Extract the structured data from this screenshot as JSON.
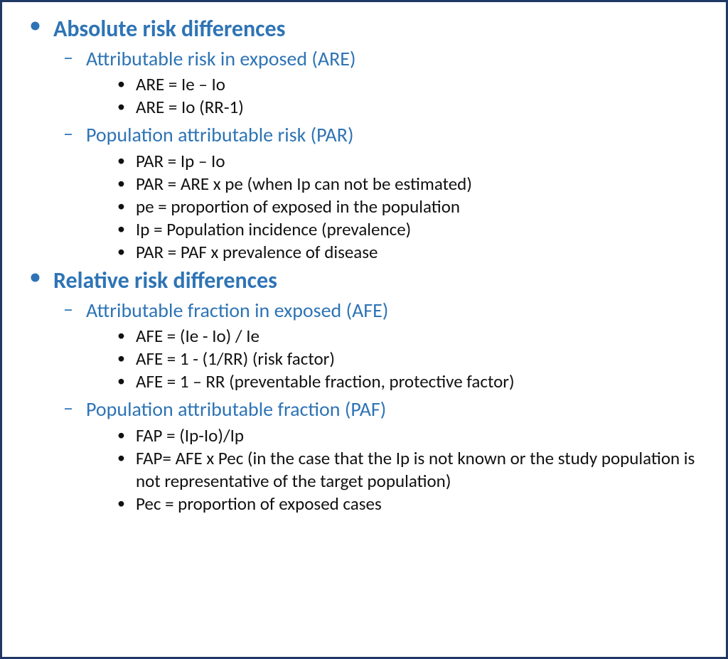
{
  "colors": {
    "border": "#1f3864",
    "accent": "#2e74b5",
    "body_text": "#111111",
    "background": "#ffffff"
  },
  "typography": {
    "family": "Calibri",
    "l1_fontsize_pt": 24,
    "l1_weight": "bold",
    "l2_fontsize_pt": 21,
    "l2_weight": "normal",
    "l3_fontsize_pt": 19,
    "l3_weight": "normal"
  },
  "bullets": {
    "l1": "•",
    "l2": "–",
    "l3": "•"
  },
  "outline": [
    {
      "label": "Absolute risk differences",
      "children": [
        {
          "label": "Attributable risk in exposed (ARE)",
          "items": [
            "ARE = Ie – Io",
            "ARE = Io (RR-1)"
          ]
        },
        {
          "label": "Population attributable risk (PAR)",
          "items": [
            "PAR = Ip – Io",
            "PAR = ARE x pe (when Ip can not be estimated)",
            "pe = proportion of exposed in the population",
            "Ip = Population incidence (prevalence)",
            "PAR = PAF x prevalence of disease"
          ]
        }
      ]
    },
    {
      "label": "Relative risk differences",
      "children": [
        {
          "label": "Attributable fraction in exposed (AFE)",
          "items": [
            "AFE = (Ie - Io) / Ie",
            "AFE = 1 - (1/RR) (risk factor)",
            "AFE = 1 – RR (preventable fraction, protective factor)"
          ]
        },
        {
          "label": "Population attributable fraction (PAF)",
          "items": [
            "FAP = (Ip-Io)/Ip",
            "FAP= AFE x Pec (in the case that the Ip is not known or the study population is not representative of the target population)",
            "Pec = proportion of exposed cases"
          ]
        }
      ]
    }
  ]
}
